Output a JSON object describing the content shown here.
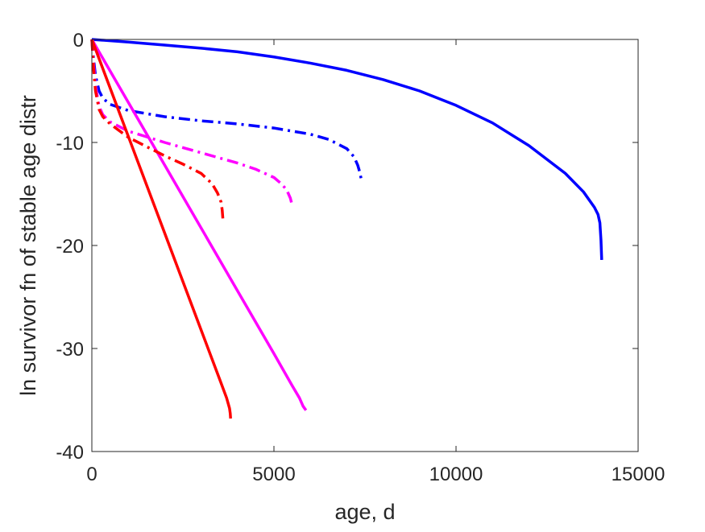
{
  "chart_data": {
    "type": "line",
    "title": "",
    "xlabel": "age, d",
    "ylabel": "ln survivor fn of stable age distr",
    "xlim": [
      0,
      15000
    ],
    "ylim": [
      -40,
      0
    ],
    "xticks": [
      0,
      5000,
      10000,
      15000
    ],
    "xtick_labels": [
      "0",
      "5000",
      "10000",
      "15000"
    ],
    "yticks": [
      0,
      -10,
      -20,
      -30,
      -40
    ],
    "ytick_labels": [
      "0",
      "-10",
      "-20",
      "-30",
      "-40"
    ],
    "grid": false,
    "legend": "none",
    "series": [
      {
        "color": "#0000ff",
        "style": "solid",
        "x": [
          0,
          1000,
          2000,
          3000,
          4000,
          5000,
          6000,
          7000,
          8000,
          9000,
          10000,
          11000,
          12000,
          13000,
          13500,
          13800,
          13900,
          13950,
          13980,
          14000
        ],
        "y": [
          0,
          -0.25,
          -0.55,
          -0.85,
          -1.2,
          -1.7,
          -2.3,
          -3.0,
          -3.9,
          -5.0,
          -6.4,
          -8.1,
          -10.3,
          -13.0,
          -14.8,
          -16.3,
          -17.0,
          -17.8,
          -19.5,
          -21.4
        ]
      },
      {
        "color": "#0000ff",
        "style": "dashdot",
        "x": [
          0,
          50,
          100,
          200,
          300,
          500,
          1000,
          2000,
          3000,
          4000,
          5000,
          6000,
          6500,
          7000,
          7200,
          7300,
          7350,
          7400
        ],
        "y": [
          0,
          -2.0,
          -3.5,
          -5.0,
          -5.7,
          -6.3,
          -6.9,
          -7.5,
          -7.9,
          -8.2,
          -8.6,
          -9.2,
          -9.7,
          -10.6,
          -11.4,
          -12.2,
          -12.8,
          -13.6
        ]
      },
      {
        "color": "#ff00ff",
        "style": "solid",
        "x": [
          0,
          1000,
          2000,
          3000,
          4000,
          5000,
          5500,
          5700,
          5800,
          5880
        ],
        "y": [
          0,
          -6.1,
          -12.2,
          -18.3,
          -24.4,
          -30.5,
          -33.6,
          -34.8,
          -35.6,
          -36.0
        ]
      },
      {
        "color": "#ff00ff",
        "style": "dashdot",
        "x": [
          0,
          50,
          100,
          200,
          300,
          500,
          1000,
          2000,
          3000,
          4000,
          4500,
          5000,
          5200,
          5350,
          5450,
          5500
        ],
        "y": [
          0,
          -2.5,
          -4.5,
          -6.5,
          -7.3,
          -8.0,
          -8.9,
          -10.0,
          -11.0,
          -12.0,
          -12.6,
          -13.4,
          -14.0,
          -14.6,
          -15.4,
          -16.1
        ]
      },
      {
        "color": "#ff0000",
        "style": "solid",
        "x": [
          0,
          1000,
          2000,
          3000,
          3500,
          3700,
          3780,
          3800,
          3810
        ],
        "y": [
          0,
          -9.4,
          -18.8,
          -28.2,
          -32.9,
          -34.8,
          -35.8,
          -36.3,
          -36.8
        ]
      },
      {
        "color": "#ff0000",
        "style": "dashdot",
        "x": [
          0,
          50,
          100,
          200,
          300,
          500,
          1000,
          1500,
          2000,
          2500,
          3000,
          3300,
          3450,
          3550,
          3580,
          3600
        ],
        "y": [
          0,
          -3.0,
          -5.0,
          -6.8,
          -7.5,
          -8.2,
          -9.5,
          -10.4,
          -11.3,
          -12.1,
          -13.0,
          -14.0,
          -14.9,
          -15.8,
          -16.6,
          -17.5
        ]
      }
    ]
  }
}
